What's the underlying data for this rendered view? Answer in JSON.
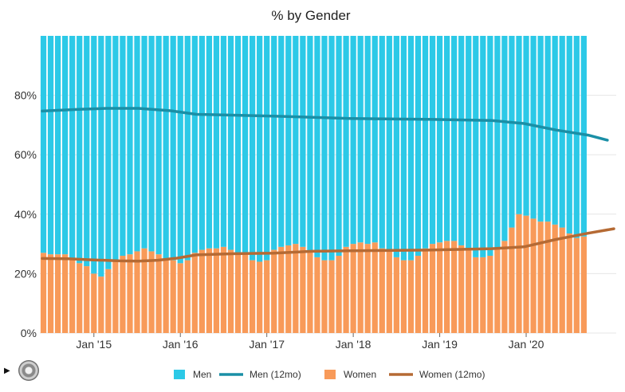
{
  "chart_data": {
    "type": "bar",
    "title": "% by Gender",
    "xlabel": "",
    "ylabel": "",
    "ylim": [
      0,
      100
    ],
    "y_ticks": [
      "0%",
      "20%",
      "40%",
      "60%",
      "80%"
    ],
    "x_ticks": [
      "Jan '15",
      "Jan '16",
      "Jan '17",
      "Jan '18",
      "Jan '19",
      "Jan '20"
    ],
    "grid": true,
    "legend_position": "bottom",
    "stacked": true,
    "start_month": "2014-06",
    "months": 80,
    "series": [
      {
        "name": "Women",
        "kind": "bar",
        "color": "#f89a59",
        "values": [
          27,
          26.5,
          26.5,
          26.5,
          25,
          23.5,
          22.5,
          20,
          19,
          21.5,
          24.5,
          26,
          26.5,
          27.5,
          28.5,
          27.5,
          26.5,
          25,
          24.5,
          23.5,
          24.5,
          27,
          28,
          28.5,
          28.5,
          29,
          28,
          27,
          26.5,
          24.5,
          24,
          24.5,
          28,
          29,
          29.5,
          30,
          29,
          27.5,
          25.5,
          24.5,
          24.5,
          26,
          29,
          30,
          30.5,
          30,
          30.5,
          28.5,
          27.5,
          25.5,
          24.5,
          24.5,
          26,
          28.5,
          30,
          30.5,
          31,
          31,
          29.5,
          28,
          25.5,
          25.5,
          26,
          28.5,
          31,
          35.5,
          40,
          39.5,
          38.5,
          37.5,
          37.5,
          36.5,
          35.5,
          33.5,
          32,
          32.5
        ]
      },
      {
        "name": "Men",
        "kind": "bar",
        "color": "#2cc9e7",
        "values": [
          73,
          73.5,
          73.5,
          73.5,
          75,
          76.5,
          77.5,
          80,
          81,
          78.5,
          75.5,
          74,
          73.5,
          72.5,
          71.5,
          72.5,
          73.5,
          75,
          75.5,
          76.5,
          75.5,
          73,
          72,
          71.5,
          71.5,
          71,
          72,
          73,
          73.5,
          75.5,
          76,
          75.5,
          72,
          71,
          70.5,
          70,
          71,
          72.5,
          74.5,
          75.5,
          75.5,
          74,
          71,
          70,
          69.5,
          70,
          69.5,
          71.5,
          72.5,
          74.5,
          75.5,
          75.5,
          74,
          71.5,
          70,
          69.5,
          69,
          69,
          70.5,
          72,
          74.5,
          74.5,
          74,
          71.5,
          69,
          64.5,
          60,
          60.5,
          61.5,
          62.5,
          62.5,
          63.5,
          64.5,
          66.5,
          68,
          67.5
        ]
      },
      {
        "name": "Men (12mo)",
        "kind": "line",
        "color": "#1a8fa6",
        "points": [
          [
            0,
            74.7
          ],
          [
            6,
            75.3
          ],
          [
            10,
            75.6
          ],
          [
            15,
            75.6
          ],
          [
            20,
            74.8
          ],
          [
            24,
            73.6
          ],
          [
            36,
            73.0
          ],
          [
            48,
            72.2
          ],
          [
            60,
            71.9
          ],
          [
            70,
            71.5
          ],
          [
            75,
            70.5
          ],
          [
            80,
            68.3
          ],
          [
            85,
            66.6
          ],
          [
            88,
            64.9
          ]
        ]
      },
      {
        "name": "Women (12mo)",
        "kind": "line",
        "color": "#b56a34",
        "points": [
          [
            0,
            25.1
          ],
          [
            4,
            25.0
          ],
          [
            8,
            24.6
          ],
          [
            12,
            24.3
          ],
          [
            15,
            24.2
          ],
          [
            18,
            24.5
          ],
          [
            21,
            25.2
          ],
          [
            24,
            26.3
          ],
          [
            30,
            26.7
          ],
          [
            36,
            26.9
          ],
          [
            42,
            27.5
          ],
          [
            48,
            27.7
          ],
          [
            60,
            27.9
          ],
          [
            70,
            28.4
          ],
          [
            75,
            29.0
          ],
          [
            80,
            31.5
          ],
          [
            85,
            33.6
          ],
          [
            89,
            35.1
          ]
        ]
      }
    ]
  },
  "controls": {
    "play_label": "▶"
  }
}
